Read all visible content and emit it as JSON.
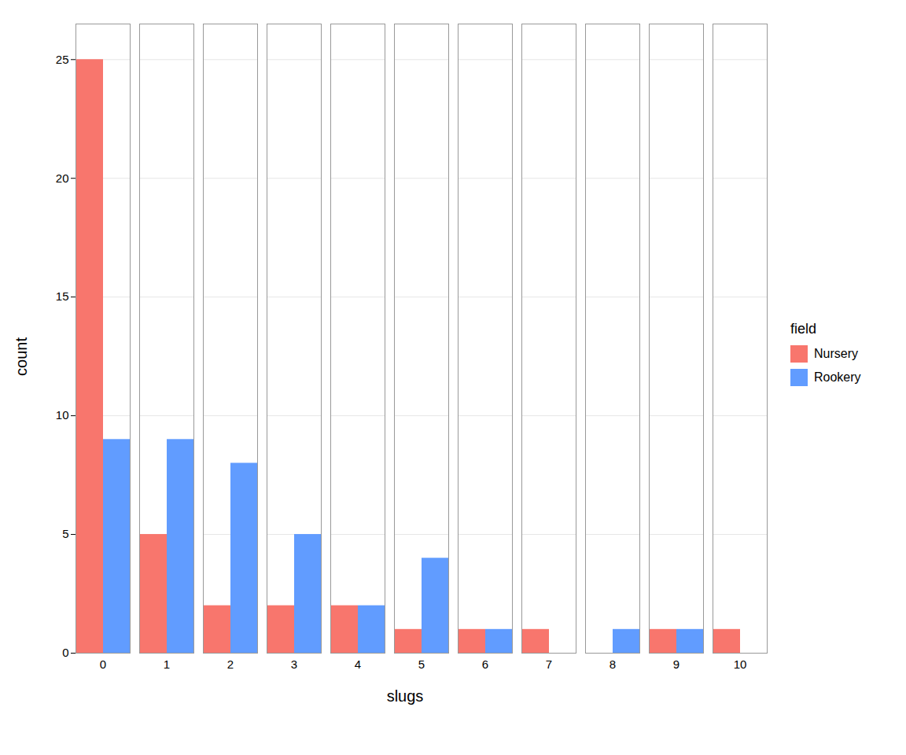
{
  "chart_data": {
    "type": "bar",
    "categories": [
      0,
      1,
      2,
      3,
      4,
      5,
      6,
      7,
      8,
      9,
      10
    ],
    "series": [
      {
        "name": "Nursery",
        "color": "#F8766D",
        "values": [
          25,
          5,
          2,
          2,
          2,
          1,
          1,
          1,
          0,
          1,
          1
        ]
      },
      {
        "name": "Rookery",
        "color": "#619CFF",
        "values": [
          9,
          9,
          8,
          5,
          2,
          4,
          1,
          0,
          1,
          1,
          0
        ]
      }
    ],
    "xlabel": "slugs",
    "ylabel": "count",
    "legend_title": "field",
    "ylim": [
      0,
      26.5
    ],
    "yticks": [
      0,
      5,
      10,
      15,
      20,
      25
    ],
    "grid": true,
    "legend": "right"
  }
}
